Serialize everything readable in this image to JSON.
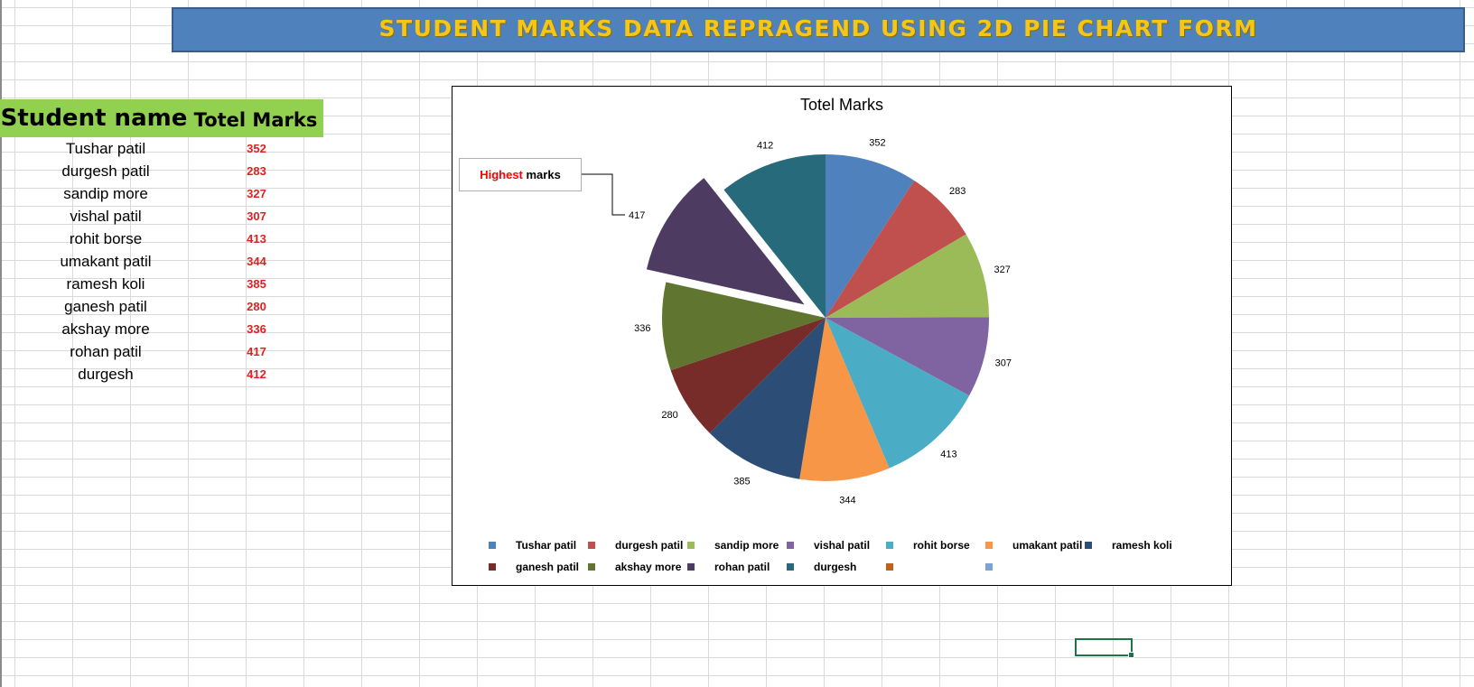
{
  "sheet": {
    "banner_title": "STUDENT MARKS DATA REPRAGEND USING 2D PIE CHART FORM",
    "table": {
      "header_name": "Student name",
      "header_marks": "Totel Marks",
      "rows": [
        {
          "name": "Tushar patil",
          "marks": "352"
        },
        {
          "name": "durgesh patil",
          "marks": "283"
        },
        {
          "name": "sandip more",
          "marks": "327"
        },
        {
          "name": "vishal patil",
          "marks": "307"
        },
        {
          "name": "rohit borse",
          "marks": "413"
        },
        {
          "name": "umakant patil",
          "marks": "344"
        },
        {
          "name": "ramesh koli",
          "marks": "385"
        },
        {
          "name": "ganesh patil",
          "marks": "280"
        },
        {
          "name": "akshay more",
          "marks": "336"
        },
        {
          "name": "rohan patil",
          "marks": "417"
        },
        {
          "name": "durgesh",
          "marks": "412"
        }
      ]
    }
  },
  "callout": {
    "highlight": "Highest",
    "rest": " marks"
  },
  "colors": {
    "banner_bg": "#4f81bd",
    "banner_text": "#f5c518",
    "header_bg": "#92d050",
    "marks_text": "#e02020",
    "legend_extra": [
      "#c0631a",
      "#7aa3d6"
    ]
  },
  "chart_data": {
    "type": "pie",
    "title": "Totel Marks",
    "categories": [
      "Tushar patil",
      "durgesh patil",
      "sandip more",
      "vishal patil",
      "rohit borse",
      "umakant patil",
      "ramesh koli",
      "ganesh patil",
      "akshay more",
      "rohan patil",
      "durgesh"
    ],
    "values": [
      352,
      283,
      327,
      307,
      413,
      344,
      385,
      280,
      336,
      417,
      412
    ],
    "colors": [
      "#4f81bd",
      "#c0504d",
      "#9bbb59",
      "#8064a2",
      "#4bacc6",
      "#f79646",
      "#2c4d75",
      "#772c2a",
      "#5f7530",
      "#4d3b62",
      "#276a7c"
    ],
    "exploded": [
      "rohan patil"
    ],
    "data_labels": true,
    "legend": "bottom"
  }
}
